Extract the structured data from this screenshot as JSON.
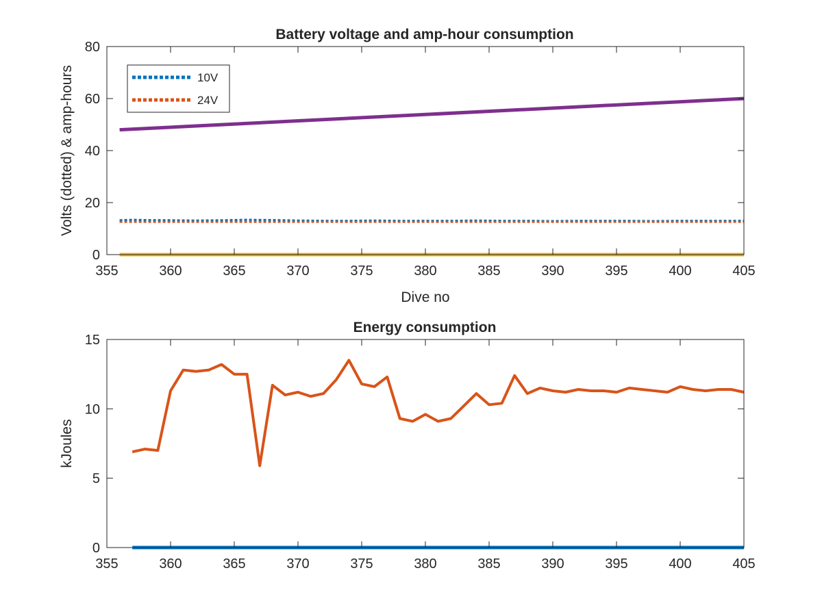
{
  "chart_data": [
    {
      "type": "line",
      "title": "Battery voltage and amp-hour consumption",
      "xlabel": "Dive no",
      "ylabel": "Volts (dotted) & amp-hours",
      "xlim": [
        355,
        405
      ],
      "ylim": [
        0,
        80
      ],
      "xticks": [
        355,
        360,
        365,
        370,
        375,
        380,
        385,
        390,
        395,
        400,
        405
      ],
      "yticks": [
        0,
        20,
        40,
        60,
        80
      ],
      "grid": false,
      "legend_position": "top-left",
      "series": [
        {
          "name": "10V",
          "style": "dotted",
          "color": "#0072BD",
          "x": [
            356,
            357,
            358,
            360,
            362,
            364,
            366,
            368,
            370,
            372,
            374,
            376,
            378,
            380,
            382,
            384,
            386,
            388,
            390,
            392,
            394,
            396,
            398,
            400,
            402,
            405
          ],
          "y": [
            13.2,
            13.4,
            13.3,
            13.2,
            13.1,
            13.2,
            13.4,
            13.3,
            13.1,
            13.0,
            13.0,
            13.1,
            13.0,
            13.0,
            13.0,
            13.1,
            13.0,
            13.0,
            12.9,
            13.0,
            13.0,
            13.0,
            12.9,
            13.0,
            13.0,
            13.0
          ]
        },
        {
          "name": "24V",
          "style": "dotted",
          "color": "#D95319",
          "x": [
            356,
            360,
            365,
            370,
            375,
            380,
            385,
            390,
            395,
            400,
            405
          ],
          "y": [
            12.6,
            12.6,
            12.6,
            12.6,
            12.6,
            12.6,
            12.6,
            12.6,
            12.6,
            12.6,
            12.6
          ]
        },
        {
          "style": "solid",
          "color": "#EDB120",
          "x": [
            356,
            405
          ],
          "y": [
            0,
            0
          ]
        },
        {
          "style": "solid",
          "color": "#7E2F8E",
          "x": [
            356,
            405
          ],
          "y": [
            48,
            60
          ]
        }
      ]
    },
    {
      "type": "line",
      "title": "Energy consumption",
      "xlabel": "",
      "ylabel": "kJoules",
      "xlim": [
        355,
        405
      ],
      "ylim": [
        0,
        15
      ],
      "xticks": [
        355,
        360,
        365,
        370,
        375,
        380,
        385,
        390,
        395,
        400,
        405
      ],
      "yticks": [
        0,
        5,
        10,
        15
      ],
      "grid": false,
      "series": [
        {
          "style": "solid",
          "color": "#0072BD",
          "x": [
            357,
            405
          ],
          "y": [
            0,
            0
          ]
        },
        {
          "style": "solid",
          "color": "#D95319",
          "x": [
            357,
            358,
            359,
            360,
            361,
            362,
            363,
            364,
            365,
            366,
            367,
            368,
            369,
            370,
            371,
            372,
            373,
            374,
            375,
            376,
            377,
            378,
            379,
            380,
            381,
            382,
            383,
            384,
            385,
            386,
            387,
            388,
            389,
            390,
            391,
            392,
            393,
            394,
            395,
            396,
            397,
            398,
            399,
            400,
            401,
            402,
            403,
            404,
            405
          ],
          "y": [
            6.9,
            7.1,
            7.0,
            11.3,
            12.8,
            12.7,
            12.8,
            13.2,
            12.5,
            12.5,
            5.9,
            11.7,
            11.0,
            11.2,
            10.9,
            11.1,
            12.1,
            13.5,
            11.8,
            11.6,
            12.3,
            9.3,
            9.1,
            9.6,
            9.1,
            9.3,
            10.2,
            11.1,
            10.3,
            10.4,
            12.4,
            11.1,
            11.5,
            11.3,
            11.2,
            11.4,
            11.3,
            11.3,
            11.2,
            11.5,
            11.4,
            11.3,
            11.2,
            11.6,
            11.4,
            11.3,
            11.4,
            11.4,
            11.2
          ]
        }
      ]
    }
  ]
}
